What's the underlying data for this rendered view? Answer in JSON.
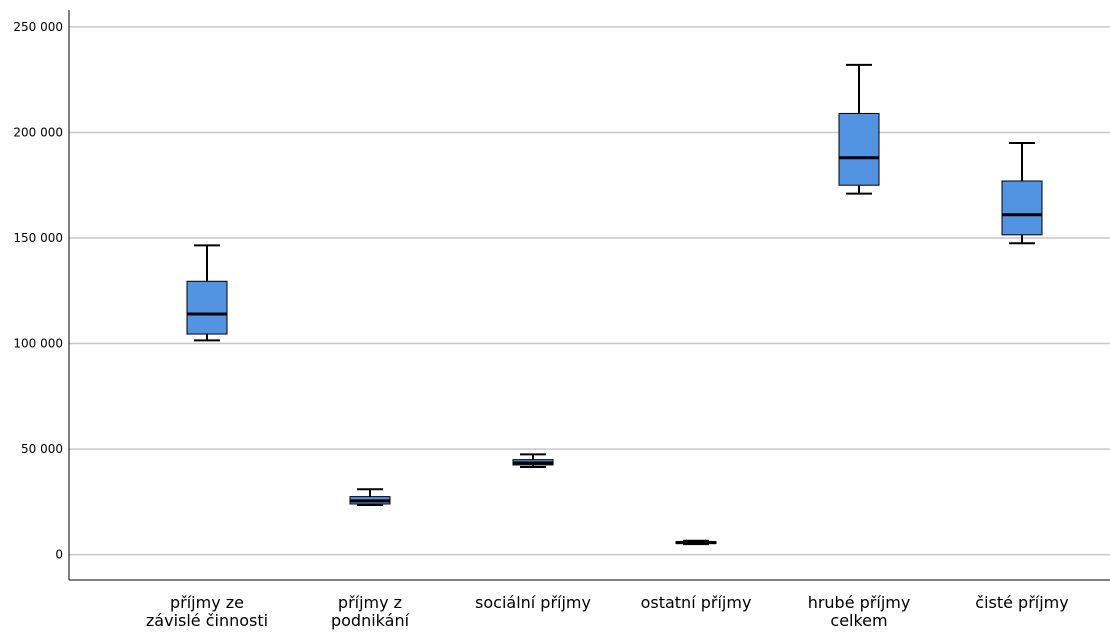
{
  "chart_data": {
    "type": "boxplot",
    "title": "",
    "xlabel": "",
    "ylabel": "",
    "ylim": [
      -12000,
      258000
    ],
    "y_ticks": [
      0,
      50000,
      100000,
      150000,
      200000,
      250000
    ],
    "y_tick_labels": [
      "0",
      "50 000",
      "100 000",
      "150 000",
      "200 000",
      "250 000"
    ],
    "grid": true,
    "legend": "none",
    "box_color": "#5294E2",
    "categories": [
      [
        "příjmy ze",
        "závislé činnosti"
      ],
      [
        "příjmy z",
        "podnikání"
      ],
      [
        "sociální příjmy"
      ],
      [
        "ostatní příjmy"
      ],
      [
        "hrubé příjmy",
        "celkem"
      ],
      [
        "čisté příjmy"
      ]
    ],
    "boxes": [
      {
        "min": 101500,
        "q1": 104500,
        "median": 114000,
        "q3": 129500,
        "max": 146500
      },
      {
        "min": 23500,
        "q1": 24000,
        "median": 25500,
        "q3": 27500,
        "max": 31000
      },
      {
        "min": 41500,
        "q1": 42500,
        "median": 43500,
        "q3": 45000,
        "max": 47500
      },
      {
        "min": 5000,
        "q1": 5300,
        "median": 5700,
        "q3": 6200,
        "max": 6600
      },
      {
        "min": 171000,
        "q1": 175000,
        "median": 188000,
        "q3": 209000,
        "max": 232000
      },
      {
        "min": 147500,
        "q1": 151500,
        "median": 161000,
        "q3": 177000,
        "max": 195000
      }
    ]
  }
}
